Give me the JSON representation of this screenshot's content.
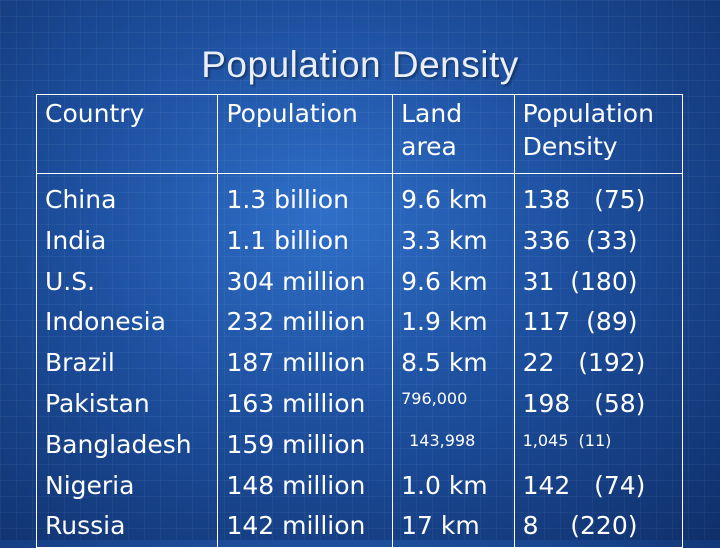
{
  "slide": {
    "title": "Population Density"
  },
  "table": {
    "headers": [
      "Country",
      "Population",
      "Land\narea",
      "Population\nDensity"
    ],
    "rows": [
      {
        "country": "China",
        "population": "1.3 billion",
        "land": "9.6 km",
        "density": "138   (75)"
      },
      {
        "country": "India",
        "population": "1.1 billion",
        "land": "3.3 km",
        "density": "336  (33)"
      },
      {
        "country": "U.S.",
        "population": "304 million",
        "land": "9.6 km",
        "density": "31  (180)"
      },
      {
        "country": "Indonesia",
        "population": "232 million",
        "land": "1.9 km",
        "density": "117  (89)"
      },
      {
        "country": "Brazil",
        "population": "187 million",
        "land": "8.5 km",
        "density": "22   (192)"
      },
      {
        "country": "Pakistan",
        "population": "163 million",
        "land": "796,000",
        "density": "198   (58)"
      },
      {
        "country": "Bangladesh",
        "population": "159 million",
        "land": "143,998",
        "density": "1,045  (11)"
      },
      {
        "country": "Nigeria",
        "population": "148 million",
        "land": "1.0 km",
        "density": "142   (74)"
      },
      {
        "country": "Russia",
        "population": "142 million",
        "land": "17 km",
        "density": "8    (220)"
      }
    ]
  }
}
